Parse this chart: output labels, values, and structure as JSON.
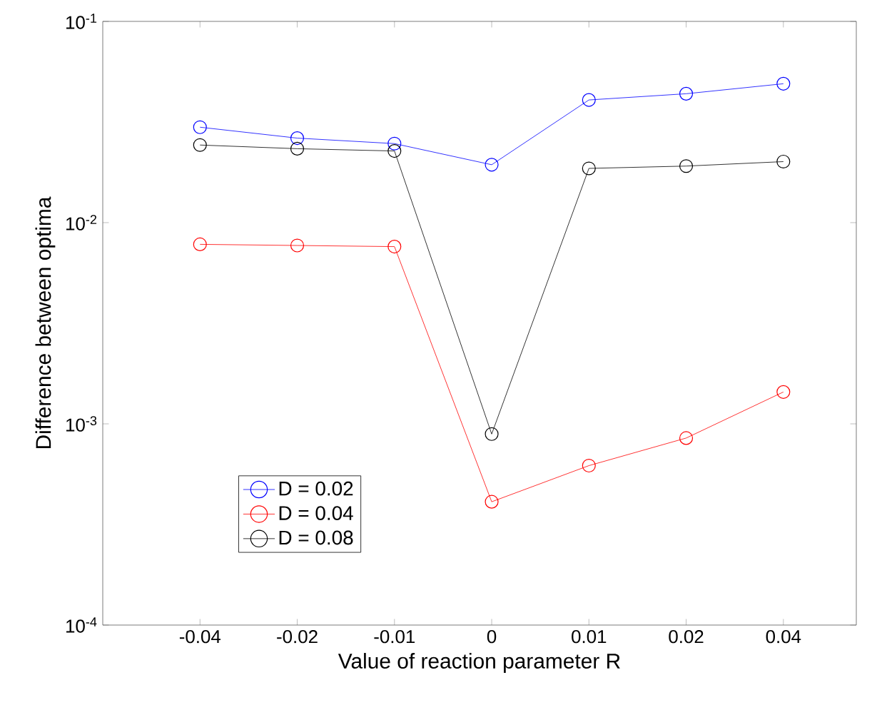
{
  "chart_data": {
    "type": "line",
    "xlabel": "Value of reaction parameter R",
    "ylabel": "Difference between optima",
    "categories": [
      "-0.04",
      "-0.02",
      "-0.01",
      "0",
      "0.01",
      "0.02",
      "0.04"
    ],
    "log": true,
    "ylim": [
      0.0001,
      0.1
    ],
    "yticks": [
      {
        "value": 0.0001,
        "label": "10$^{-4}$"
      },
      {
        "value": 0.001,
        "label": "10$^{-3}$"
      },
      {
        "value": 0.01,
        "label": "10$^{-2}$"
      },
      {
        "value": 0.1,
        "label": "10$^{-1}$"
      }
    ],
    "marker": "circle",
    "line_style": "solid",
    "grid": false,
    "legend": "bottom left",
    "series": [
      {
        "name": "D = 0.02",
        "color": "#0000ff",
        "values": [
          0.0298,
          0.0263,
          0.0247,
          0.0194,
          0.0407,
          0.0437,
          0.049
        ]
      },
      {
        "name": "D = 0.04",
        "color": "#ff0000",
        "values": [
          0.0078,
          0.0077,
          0.0076,
          0.00041,
          0.00062,
          0.00085,
          0.00144
        ]
      },
      {
        "name": "D = 0.08",
        "color": "#000000",
        "values": [
          0.0243,
          0.0233,
          0.0227,
          0.00089,
          0.0186,
          0.0191,
          0.0201
        ]
      }
    ]
  }
}
